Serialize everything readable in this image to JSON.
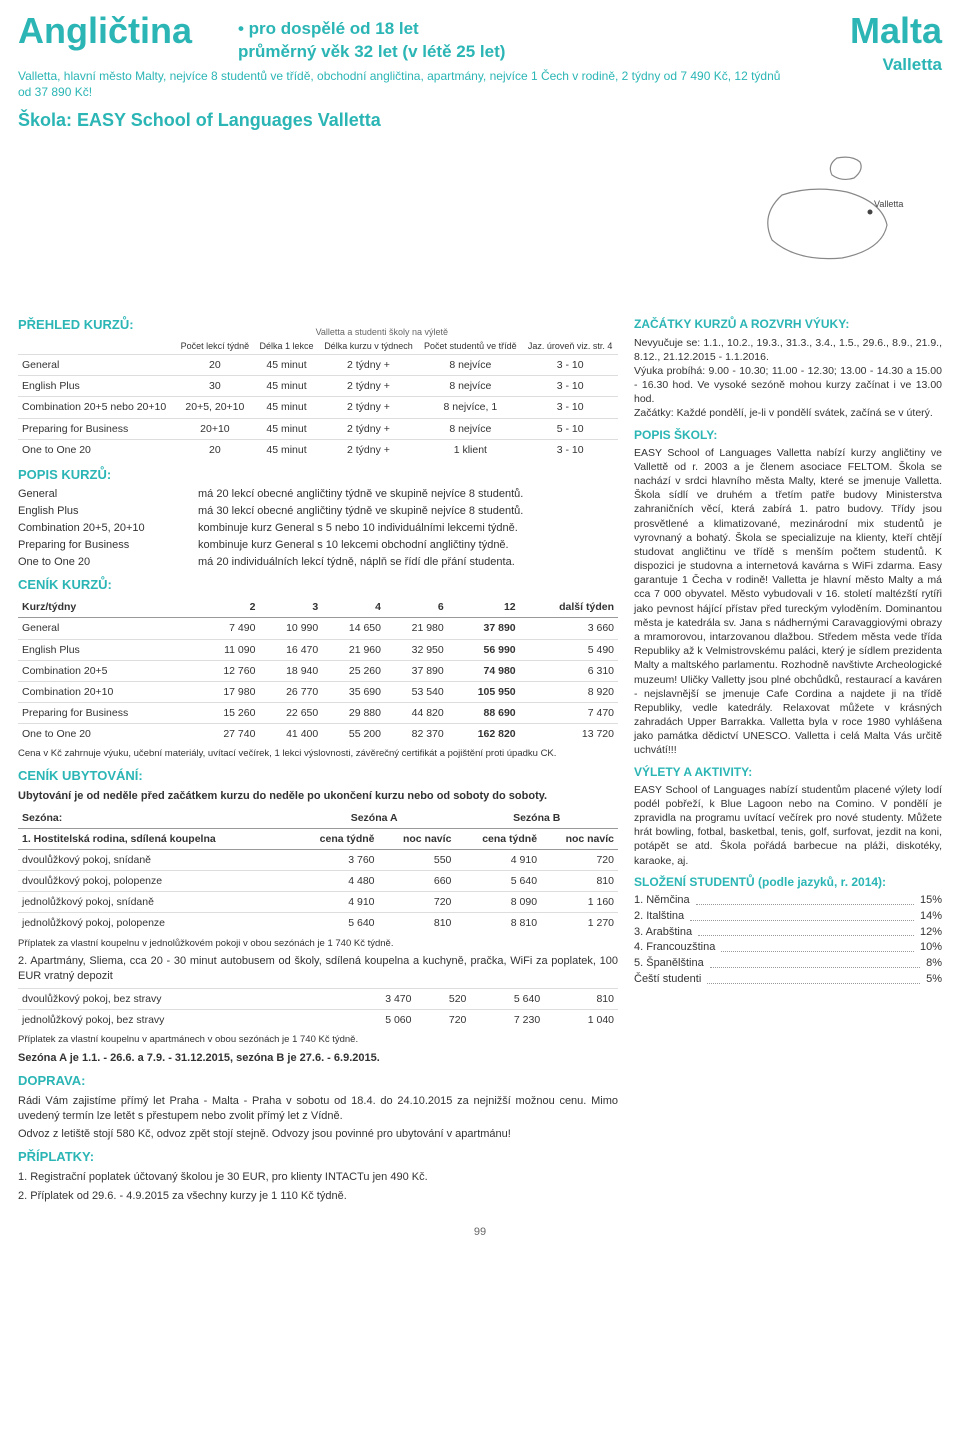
{
  "header": {
    "title_left": "Angličtina",
    "title_right": "Malta",
    "subtitle_right": "Valletta",
    "map_label": "Valletta",
    "tag_line1": "• pro dospělé od 18 let",
    "tag_line2": "průměrný věk 32 let (v létě 25 let)",
    "desc": "Valletta, hlavní město Malty, nejvíce 8 studentů ve třídě, obchodní angličtina, apartmány, nejvíce 1 Čech v rodině, 2 týdny od 7 490 Kč, 12 týdnů od 37 890 Kč!",
    "school": "Škola: EASY School of Languages Valletta"
  },
  "prehled": {
    "title": "PŘEHLED KURZŮ:",
    "caption": "Valletta a studenti školy na výletě",
    "cols": [
      "",
      "Počet lekcí týdně",
      "Délka 1 lekce",
      "Délka kurzu v týdnech",
      "Počet studentů ve třídě",
      "Jaz. úroveň viz. str. 4"
    ],
    "rows": [
      [
        "General",
        "20",
        "45 minut",
        "2 týdny +",
        "8 nejvíce",
        "3 - 10"
      ],
      [
        "English Plus",
        "30",
        "45 minut",
        "2 týdny +",
        "8 nejvíce",
        "3 - 10"
      ],
      [
        "Combination 20+5 nebo 20+10",
        "20+5, 20+10",
        "45 minut",
        "2 týdny +",
        "8 nejvíce, 1",
        "3 - 10"
      ],
      [
        "Preparing for Business",
        "20+10",
        "45 minut",
        "2 týdny +",
        "8 nejvíce",
        "5 - 10"
      ],
      [
        "One to One 20",
        "20",
        "45 minut",
        "2 týdny +",
        "1 klient",
        "3 - 10"
      ]
    ]
  },
  "popis": {
    "title": "POPIS KURZŮ:",
    "items": [
      [
        "General",
        "má 20 lekcí obecné angličtiny týdně ve skupině nejvíce 8 studentů."
      ],
      [
        "English Plus",
        "má 30 lekcí obecné angličtiny týdně ve skupině nejvíce 8 studentů."
      ],
      [
        "Combination 20+5, 20+10",
        "kombinuje kurz General s 5 nebo 10 individuálními lekcemi týdně."
      ],
      [
        "Preparing for Business",
        "kombinuje kurz General s 10 lekcemi obchodní angličtiny týdně."
      ],
      [
        "One to One 20",
        "má 20 individuálních lekcí týdně, náplň se řídí dle přání studenta."
      ]
    ]
  },
  "cenik": {
    "title": "CENÍK KURZŮ:",
    "cols": [
      "Kurz/týdny",
      "2",
      "3",
      "4",
      "6",
      "12",
      "další týden"
    ],
    "rows": [
      [
        "General",
        "7 490",
        "10 990",
        "14 650",
        "21 980",
        "37 890",
        "3 660"
      ],
      [
        "English Plus",
        "11 090",
        "16 470",
        "21 960",
        "32 950",
        "56 990",
        "5 490"
      ],
      [
        "Combination 20+5",
        "12 760",
        "18 940",
        "25 260",
        "37 890",
        "74 980",
        "6 310"
      ],
      [
        "Combination 20+10",
        "17 980",
        "26 770",
        "35 690",
        "53 540",
        "105 950",
        "8 920"
      ],
      [
        "Preparing for Business",
        "15 260",
        "22 650",
        "29 880",
        "44 820",
        "88 690",
        "7 470"
      ],
      [
        "One to One 20",
        "27 740",
        "41 400",
        "55 200",
        "82 370",
        "162 820",
        "13 720"
      ]
    ],
    "note": "Cena v Kč zahrnuje výuku, učební materiály, uvítací večírek, 1 lekci výslovnosti, závěrečný certifikát a pojištění proti úpadku CK."
  },
  "ubytovani": {
    "title": "CENÍK UBYTOVÁNÍ:",
    "intro": "Ubytování je od neděle před začátkem kurzu do neděle po ukončení kurzu nebo od soboty do soboty.",
    "groupHead": [
      "Sezóna:",
      "Sezóna A",
      "Sezóna B"
    ],
    "sub1": "1. Hostitelská rodina, sdílená koupelna",
    "cols": [
      "",
      "cena týdně",
      "noc navíc",
      "cena týdně",
      "noc navíc"
    ],
    "rows1": [
      [
        "dvoulůžkový pokoj, snídaně",
        "3 760",
        "550",
        "4 910",
        "720"
      ],
      [
        "dvoulůžkový pokoj, polopenze",
        "4 480",
        "660",
        "5 640",
        "810"
      ],
      [
        "jednolůžkový pokoj, snídaně",
        "4 910",
        "720",
        "8 090",
        "1 160"
      ],
      [
        "jednolůžkový pokoj, polopenze",
        "5 640",
        "810",
        "8 810",
        "1 270"
      ]
    ],
    "note1": "Příplatek za vlastní koupelnu v jednolůžkovém pokoji v obou sezónách je 1 740 Kč týdně.",
    "sub2": "2. Apartmány, Sliema, cca 20 - 30 minut autobusem od školy, sdílená koupelna a kuchyně, pračka, WiFi za poplatek, 100 EUR vratný depozit",
    "rows2": [
      [
        "dvoulůžkový pokoj, bez stravy",
        "3 470",
        "520",
        "5 640",
        "810"
      ],
      [
        "jednolůžkový pokoj, bez stravy",
        "5 060",
        "720",
        "7 230",
        "1 040"
      ]
    ],
    "note2": "Příplatek za vlastní koupelnu v apartmánech v obou sezónách je 1 740 Kč týdně.",
    "seasons": "Sezóna A je 1.1. - 26.6. a 7.9. - 31.12.2015, sezóna B je 27.6. - 6.9.2015."
  },
  "doprava": {
    "title": "DOPRAVA:",
    "body": "Rádi Vám zajistíme přímý let Praha - Malta - Praha v sobotu od 18.4. do 24.10.2015 za nejnižší možnou cenu. Mimo uvedený termín lze letět s přestupem nebo zvolit přímý let z Vídně.",
    "body2": "Odvoz z letiště stojí 580 Kč, odvoz zpět stojí stejně. Odvozy jsou povinné pro ubytování v apartmánu!"
  },
  "priplatky": {
    "title": "PŘÍPLATKY:",
    "items": [
      "1.  Registrační poplatek účtovaný školou je 30 EUR, pro klienty INTACTu jen 490 Kč.",
      "2.  Příplatek od 29.6. - 4.9.2015 za všechny kurzy je 1 110 Kč týdně."
    ]
  },
  "right": {
    "zacatky_title": "ZAČÁTKY KURZŮ A ROZVRH VÝUKY:",
    "nevyucuje": "Nevyučuje se: 1.1., 10.2., 19.3., 31.3., 3.4., 1.5., 29.6., 8.9., 21.9., 8.12., 21.12.2015 - 1.1.2016.",
    "vyuka": "Výuka probíhá: 9.00 - 10.30; 11.00 - 12.30; 13.00 - 14.30 a 15.00 - 16.30 hod. Ve vysoké sezóně mohou kurzy začínat i ve 13.00 hod.",
    "zacatky_txt": "Začátky: Každé pondělí, je-li v pondělí svátek, začíná se v úterý.",
    "popis_skoly_title": "POPIS ŠKOLY:",
    "popis_skoly": "EASY School of Languages Valletta nabízí kurzy angličtiny ve Vallettě od r. 2003 a je členem asociace FELTOM. Škola se nachází v srdci hlavního města Malty, které se jmenuje Valletta. Škola sídlí ve druhém a třetím patře budovy Ministerstva zahraničních věcí, která zabírá 1. patro budovy. Třídy jsou prosvětlené a klimatizované, mezinárodní mix studentů je vyrovnaný a bohatý. Škola se specializuje na klienty, kteří chtějí studovat angličtinu ve třídě s menším počtem studentů. K dispozici je studovna a internetová kavárna s WiFi zdarma. Easy garantuje 1 Čecha v rodině! Valletta je hlavní město Malty a má cca 7 000 obyvatel. Město vybudovali v 16. století maltézští rytíři jako pevnost hájící přístav před tureckým vyloděním. Dominantou města je katedrála sv. Jana s nádhernými Caravaggiovými obrazy a mramorovou, intarzovanou dlažbou. Středem města vede třída Republiky až k Velmistrovskému paláci, který je sídlem prezidenta Malty a maltského parlamentu. Rozhodně navštivte Archeologické muzeum! Uličky Valletty jsou plné obchůdků, restaurací a kaváren - nejslavnější se jmenuje Cafe Cordina a najdete ji na třídě Republiky, vedle katedrály. Relaxovat můžete v krásných zahradách Upper Barrakka. Valletta byla v roce 1980 vyhlášena jako památka dědictví UNESCO. Valletta i celá Malta Vás určitě uchvátí!!!",
    "vylety_title": "VÝLETY A AKTIVITY:",
    "vylety": "EASY School of Languages nabízí studentům placené výlety lodí podél pobřeží, k Blue Lagoon nebo na Comino. V pondělí je zpravidla na programu uvítací večírek pro nové studenty. Můžete hrát bowling, fotbal, basketbal, tenis, golf, surfovat, jezdit na koni, potápět se atd. Škola pořádá barbecue na pláži, diskotéky, karaoke, aj.",
    "slozeni_title": "SLOŽENÍ STUDENTŮ (podle jazyků, r. 2014):",
    "slozeni": [
      [
        "1. Němčina",
        "15%"
      ],
      [
        "2. Italština",
        "14%"
      ],
      [
        "3. Arabština",
        "12%"
      ],
      [
        "4. Francouzština",
        "10%"
      ],
      [
        "5. Španělština",
        "8%"
      ],
      [
        "Čeští studenti",
        "5%"
      ]
    ]
  },
  "page": "99",
  "colors": {
    "accent": "#2bb5b5",
    "border": "#dddddd"
  }
}
